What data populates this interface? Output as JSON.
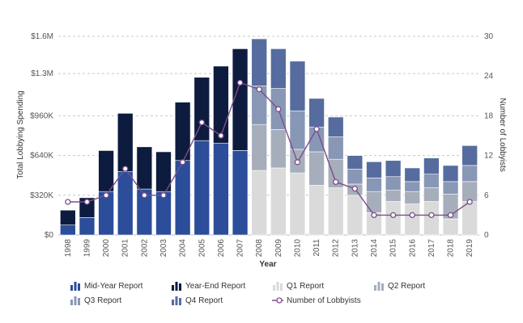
{
  "colors": {
    "mid_year": "#2b4d9a",
    "year_end": "#0d1b3e",
    "q1": "#dadada",
    "q2": "#a6aebb",
    "q3": "#8897b5",
    "q4": "#566c9f",
    "lobbyists": "#7a4f8a"
  },
  "legend": [
    {
      "name": "Mid-Year Report",
      "icon": "bar-chart-icon",
      "color_key": "mid_year"
    },
    {
      "name": "Year-End Report",
      "icon": "bar-chart-icon",
      "color_key": "year_end"
    },
    {
      "name": "Q1 Report",
      "icon": "bar-chart-icon",
      "color_key": "q1"
    },
    {
      "name": "Q2 Report",
      "icon": "bar-chart-icon",
      "color_key": "q2"
    },
    {
      "name": "Q3 Report",
      "icon": "bar-chart-icon",
      "color_key": "q3"
    },
    {
      "name": "Q4 Report",
      "icon": "bar-chart-icon",
      "color_key": "q4"
    },
    {
      "name": "Number of Lobbyists",
      "icon": "line-marker-icon",
      "color_key": "lobbyists"
    }
  ],
  "chart_data": {
    "type": "bar",
    "stacked": true,
    "xlabel": "Year",
    "ylabel": "Total Lobbying Spending",
    "y2label": "Number of Lobbyists",
    "ylim": [
      0,
      1600000
    ],
    "y2lim": [
      0,
      30
    ],
    "yticks": [
      0,
      320000,
      640000,
      960000,
      1300000,
      1600000
    ],
    "ytick_labels": [
      "$0",
      "$320K",
      "$640K",
      "$960K",
      "$1.3M",
      "$1.6M"
    ],
    "y2ticks": [
      0,
      6,
      12,
      18,
      24,
      30
    ],
    "grid": true,
    "legend_position": "bottom",
    "categories": [
      "1998",
      "1999",
      "2000",
      "2001",
      "2002",
      "2003",
      "2004",
      "2005",
      "2006",
      "2007",
      "2008",
      "2009",
      "2010",
      "2011",
      "2012",
      "2013",
      "2014",
      "2015",
      "2016",
      "2017",
      "2018",
      "2019"
    ],
    "series": [
      {
        "name": "Mid-Year Report",
        "color_key": "mid_year",
        "values": [
          80000,
          140000,
          350000,
          510000,
          370000,
          350000,
          600000,
          760000,
          740000,
          680000,
          0,
          0,
          0,
          0,
          0,
          0,
          0,
          0,
          0,
          0,
          0,
          0
        ]
      },
      {
        "name": "Year-End Report",
        "color_key": "year_end",
        "values": [
          120000,
          160000,
          330000,
          470000,
          340000,
          320000,
          470000,
          510000,
          620000,
          820000,
          0,
          0,
          0,
          0,
          0,
          0,
          0,
          0,
          0,
          0,
          0,
          0
        ]
      },
      {
        "name": "Q1 Report",
        "color_key": "q1",
        "values": [
          0,
          0,
          0,
          0,
          0,
          0,
          0,
          0,
          0,
          0,
          520000,
          540000,
          500000,
          400000,
          380000,
          320000,
          180000,
          270000,
          250000,
          270000,
          130000,
          270000
        ]
      },
      {
        "name": "Q2 Report",
        "color_key": "q2",
        "values": [
          0,
          0,
          0,
          0,
          0,
          0,
          0,
          0,
          0,
          0,
          370000,
          310000,
          190000,
          270000,
          230000,
          90000,
          170000,
          90000,
          100000,
          110000,
          200000,
          160000
        ]
      },
      {
        "name": "Q3 Report",
        "color_key": "q3",
        "values": [
          0,
          0,
          0,
          0,
          0,
          0,
          0,
          0,
          0,
          0,
          310000,
          330000,
          310000,
          200000,
          180000,
          120000,
          110000,
          110000,
          80000,
          110000,
          100000,
          130000
        ]
      },
      {
        "name": "Q4 Report",
        "color_key": "q4",
        "values": [
          0,
          0,
          0,
          0,
          0,
          0,
          0,
          0,
          0,
          0,
          380000,
          320000,
          400000,
          230000,
          160000,
          110000,
          130000,
          130000,
          110000,
          130000,
          130000,
          160000
        ]
      }
    ],
    "line": {
      "name": "Number of Lobbyists",
      "color_key": "lobbyists",
      "axis": "right",
      "values": [
        5,
        5,
        6,
        10,
        6,
        6,
        11,
        17,
        15,
        23,
        22,
        19,
        11,
        16,
        8,
        7,
        3,
        3,
        3,
        3,
        3,
        5
      ]
    }
  }
}
